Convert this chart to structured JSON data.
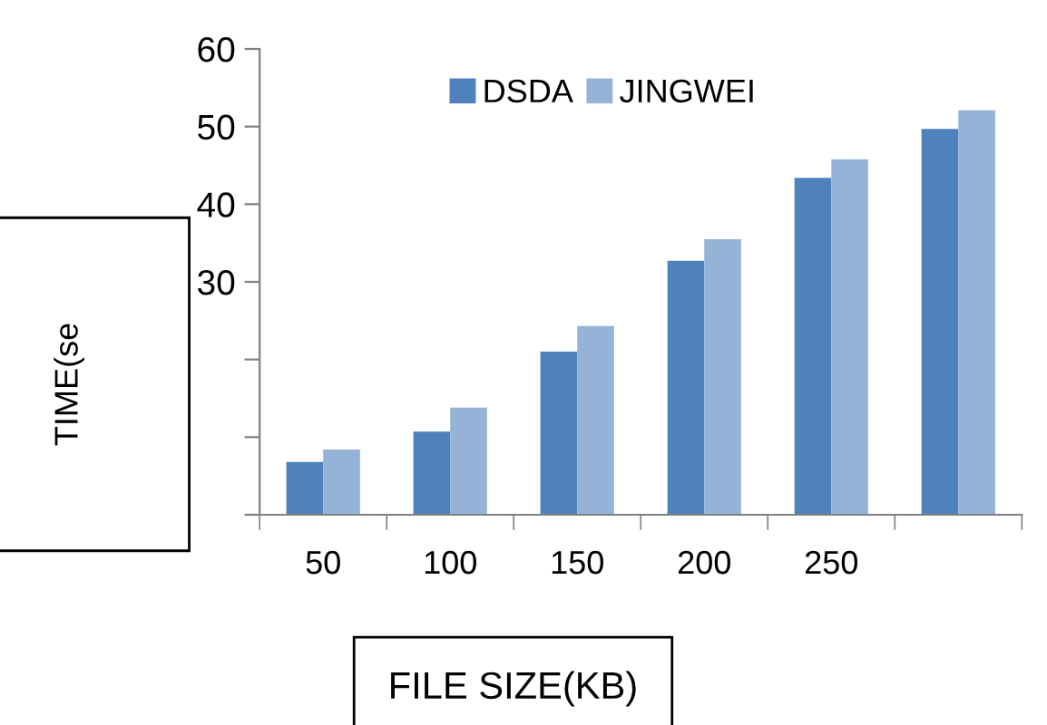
{
  "chart_data": {
    "type": "bar",
    "xlabel": "FILE SIZE(KB)",
    "ylabel": "TIME(se",
    "categories": [
      "50",
      "100",
      "150",
      "200",
      "250",
      null
    ],
    "series": [
      {
        "name": "DSDA",
        "color": "#4f81bd",
        "values": [
          6.8,
          10.7,
          21,
          32.7,
          43.4,
          49.7
        ]
      },
      {
        "name": "JINGWEI",
        "color": "#95b3d7",
        "values": [
          8.4,
          13.8,
          24.3,
          35.5,
          45.8,
          52.1
        ]
      }
    ],
    "ylim": [
      0,
      60
    ],
    "yticks": [
      {
        "value": 0,
        "label": null
      },
      {
        "value": 10,
        "label": null
      },
      {
        "value": 20,
        "label": null
      },
      30,
      40,
      50,
      60
    ],
    "grid": false,
    "legend": "top"
  }
}
